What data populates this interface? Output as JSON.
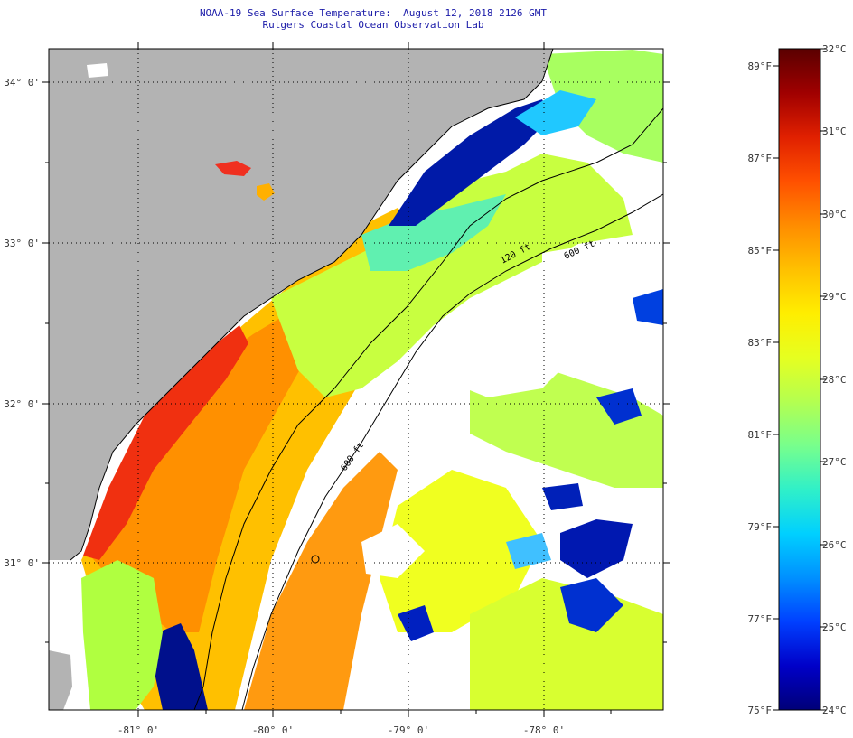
{
  "title_line1": "NOAA-19 Sea Surface Temperature:  August 12, 2018 2126 GMT",
  "title_line2": "Rutgers Coastal Ocean Observation Lab",
  "latitude_labels": [
    "34° 0'",
    "33° 0'",
    "32° 0'",
    "31° 0'"
  ],
  "longitude_labels": [
    "-81° 0'",
    "-80° 0'",
    "-79° 0'",
    "-78° 0'"
  ],
  "isobath_labels": [
    "120 ft",
    "600 ft",
    "600 ft"
  ],
  "colorbar": {
    "fahrenheit_labels": [
      "89°F",
      "87°F",
      "85°F",
      "83°F",
      "81°F",
      "79°F",
      "77°F",
      "75°F"
    ],
    "celsius_labels": [
      "32°C",
      "31°C",
      "30°C",
      "29°C",
      "28°C",
      "27°C",
      "26°C",
      "25°C",
      "24°C"
    ],
    "colors": [
      "#5a0000",
      "#a00000",
      "#e02000",
      "#ff5000",
      "#ff8c00",
      "#ffc000",
      "#ffee00",
      "#e6ff20",
      "#b4ff50",
      "#78ff8c",
      "#30f0c8",
      "#00d0ff",
      "#0090ff",
      "#0040ff",
      "#0000c8",
      "#000078"
    ]
  },
  "colors": {
    "land": "#b3b3b3",
    "cloud": "#ffffff",
    "title": "#1a1aa8",
    "contour": "#000000"
  }
}
